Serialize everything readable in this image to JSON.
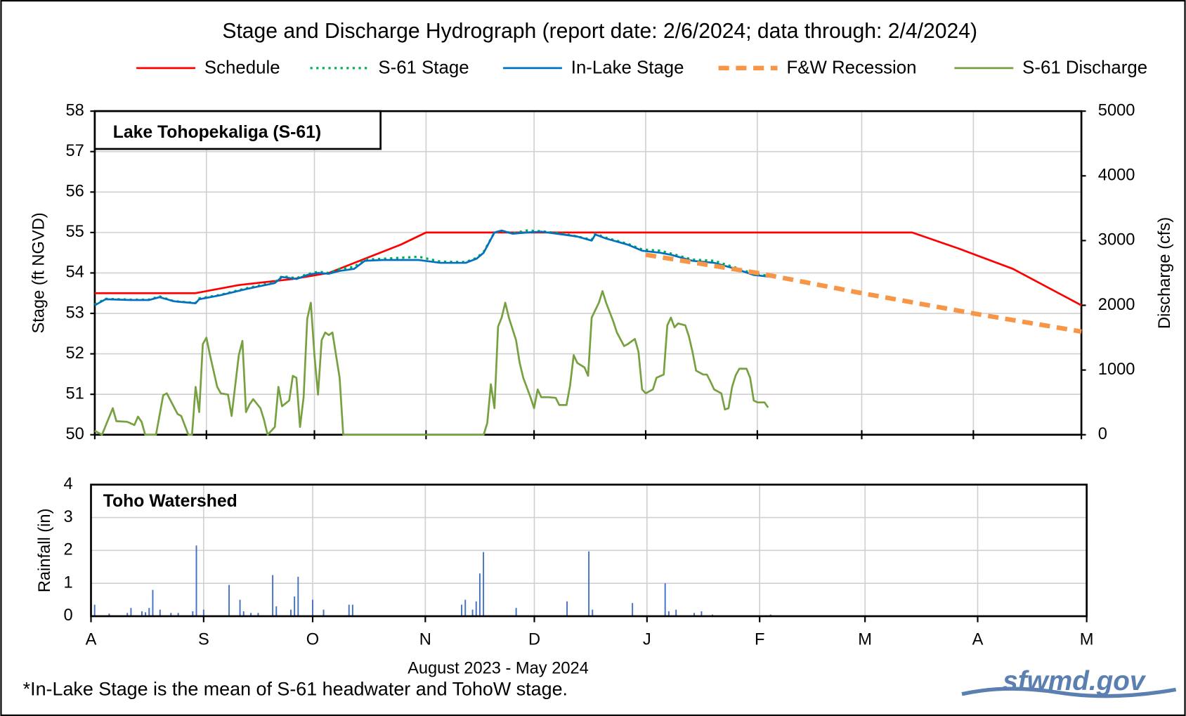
{
  "title": "Stage and Discharge Hydrograph (report date: 2/6/2024; data through: 2/4/2024)",
  "footnote": "*In-Lake Stage is the mean of S-61 headwater and TohoW stage.",
  "logo": "sfwmd.gov",
  "chart_data": [
    {
      "type": "line",
      "panel_label": "Lake Tohopekaliga (S-61)",
      "ylabel": "Stage (ft NGVD)",
      "y2label": "Discharge (cfs)",
      "xlim": [
        0,
        274
      ],
      "xticks": [
        0,
        31,
        61,
        92,
        122,
        153,
        184,
        213,
        244,
        274
      ],
      "ylim": [
        50,
        58
      ],
      "yticks": [
        50,
        51,
        52,
        53,
        54,
        55,
        56,
        57,
        58
      ],
      "y2lim": [
        0,
        5000
      ],
      "y2ticks": [
        0,
        1000,
        2000,
        3000,
        4000,
        5000
      ],
      "grid": true,
      "series": [
        {
          "name": "Schedule",
          "color": "#ff0000",
          "style": "solid",
          "x": [
            0,
            28,
            40,
            55,
            65,
            75,
            85,
            92,
            227,
            240,
            255,
            274
          ],
          "values": [
            53.5,
            53.5,
            53.7,
            53.85,
            54.0,
            54.35,
            54.7,
            55.0,
            55.0,
            54.6,
            54.1,
            53.2
          ]
        },
        {
          "name": "S-61 Stage",
          "color": "#00b050",
          "style": "dotted",
          "x": [
            0,
            3,
            10,
            15,
            18,
            22,
            28,
            29,
            35,
            42,
            50,
            52,
            56,
            59,
            62,
            65,
            68,
            72,
            75,
            80,
            90,
            96,
            103,
            106,
            108,
            111,
            113,
            116,
            120,
            124,
            130,
            134,
            138,
            139,
            142,
            148,
            152,
            157,
            160,
            166,
            172,
            178,
            183,
            188
          ],
          "values": [
            53.22,
            53.36,
            53.34,
            53.34,
            53.42,
            53.3,
            53.26,
            53.37,
            53.46,
            53.62,
            53.77,
            53.92,
            53.87,
            53.97,
            54.03,
            54.0,
            54.1,
            54.15,
            54.33,
            54.35,
            54.4,
            54.28,
            54.27,
            54.37,
            54.52,
            55.0,
            55.04,
            54.98,
            55.05,
            55.03,
            54.97,
            54.9,
            54.82,
            54.97,
            54.87,
            54.72,
            54.58,
            54.55,
            54.48,
            54.33,
            54.3,
            54.13,
            53.98,
            53.92
          ]
        },
        {
          "name": "In-Lake Stage",
          "color": "#0070c0",
          "style": "solid",
          "x": [
            0,
            3,
            10,
            15,
            18,
            22,
            28,
            29,
            35,
            42,
            50,
            52,
            56,
            59,
            62,
            65,
            68,
            72,
            75,
            80,
            90,
            96,
            103,
            106,
            108,
            111,
            113,
            116,
            120,
            124,
            130,
            134,
            138,
            139,
            142,
            148,
            152,
            157,
            160,
            166,
            172,
            178,
            183,
            188
          ],
          "values": [
            53.2,
            53.35,
            53.33,
            53.33,
            53.4,
            53.3,
            53.25,
            53.35,
            53.45,
            53.6,
            53.75,
            53.9,
            53.85,
            53.95,
            54.0,
            53.98,
            54.05,
            54.1,
            54.3,
            54.32,
            54.32,
            54.25,
            54.25,
            54.35,
            54.5,
            55.0,
            55.05,
            54.97,
            55.0,
            55.02,
            54.95,
            54.9,
            54.8,
            54.95,
            54.85,
            54.7,
            54.55,
            54.5,
            54.45,
            54.3,
            54.25,
            54.1,
            53.95,
            53.9
          ]
        },
        {
          "name": "F&W Recession",
          "color": "#f79646",
          "style": "dashed",
          "x": [
            153,
            184,
            213,
            244,
            274
          ],
          "values": [
            54.45,
            54.0,
            53.5,
            53.0,
            52.55
          ]
        },
        {
          "name": "S-61 Discharge",
          "color": "#77a040",
          "style": "solid",
          "axis": "y2",
          "x": [
            0,
            2,
            5,
            6,
            9,
            11,
            12,
            13,
            14,
            17,
            19,
            20,
            23,
            24,
            26,
            27,
            28,
            29,
            30,
            31,
            32,
            34,
            35,
            37,
            38,
            40,
            41,
            42,
            43,
            44,
            46,
            47,
            48,
            50,
            51,
            52,
            54,
            55,
            56,
            57,
            58,
            59,
            60,
            61,
            62,
            63,
            64,
            65,
            66,
            68,
            69,
            108,
            109,
            110,
            111,
            112,
            113,
            114,
            115,
            117,
            118,
            119,
            121,
            122,
            123,
            124,
            126,
            128,
            129,
            131,
            132,
            133,
            134,
            136,
            137,
            138,
            140,
            141,
            142,
            144,
            145,
            147,
            148,
            150,
            151,
            152,
            153,
            155,
            156,
            158,
            159,
            160,
            161,
            162,
            164,
            165,
            166,
            167,
            169,
            170,
            171,
            172,
            174,
            175,
            176,
            177,
            178,
            179,
            181,
            182,
            183,
            184,
            186,
            187
          ],
          "values": [
            60,
            0,
            410,
            210,
            200,
            150,
            280,
            200,
            0,
            0,
            610,
            640,
            320,
            290,
            0,
            0,
            740,
            350,
            1400,
            1500,
            1230,
            740,
            640,
            620,
            290,
            1230,
            1450,
            350,
            470,
            550,
            410,
            230,
            0,
            120,
            740,
            440,
            530,
            910,
            880,
            120,
            580,
            1790,
            2040,
            1230,
            620,
            1460,
            1580,
            1540,
            1580,
            880,
            0,
            0,
            180,
            780,
            410,
            1670,
            1810,
            2040,
            1810,
            1460,
            1110,
            880,
            580,
            410,
            700,
            580,
            580,
            570,
            460,
            460,
            760,
            1230,
            1110,
            1040,
            910,
            1810,
            2040,
            2220,
            2040,
            1750,
            1580,
            1370,
            1400,
            1480,
            1280,
            700,
            640,
            700,
            880,
            930,
            1690,
            1810,
            1660,
            1720,
            1690,
            1520,
            1280,
            990,
            930,
            930,
            820,
            700,
            640,
            390,
            410,
            740,
            920,
            1020,
            1020,
            880,
            530,
            500,
            500,
            420
          ]
        }
      ]
    },
    {
      "type": "bar",
      "panel_label": "Toho Watershed",
      "ylabel": "Rainfall (in)",
      "xlabel": "August 2023 - May 2024",
      "color": "#4472c4",
      "xlim": [
        0,
        274
      ],
      "xticks": [
        {
          "value": 0,
          "label": "A"
        },
        {
          "value": 31,
          "label": "S"
        },
        {
          "value": 61,
          "label": "O"
        },
        {
          "value": 92,
          "label": "N"
        },
        {
          "value": 122,
          "label": "D"
        },
        {
          "value": 153,
          "label": "J"
        },
        {
          "value": 184,
          "label": "F"
        },
        {
          "value": 213,
          "label": "M"
        },
        {
          "value": 244,
          "label": "A"
        },
        {
          "value": 274,
          "label": "M"
        }
      ],
      "ylim": [
        0,
        4
      ],
      "yticks": [
        0,
        1,
        2,
        3,
        4
      ],
      "grid": true,
      "x": [
        1,
        5,
        10,
        11,
        14,
        15,
        16,
        17,
        19,
        22,
        24,
        28,
        29,
        31,
        38,
        41,
        42,
        44,
        46,
        50,
        51,
        55,
        56,
        57,
        61,
        64,
        71,
        72,
        102,
        103,
        105,
        106,
        107,
        108,
        117,
        131,
        137,
        138,
        149,
        158,
        159,
        161,
        166,
        168,
        171,
        187
      ],
      "values": [
        0.35,
        0.08,
        0.1,
        0.25,
        0.15,
        0.12,
        0.25,
        0.8,
        0.2,
        0.1,
        0.1,
        0.15,
        2.15,
        0.2,
        0.95,
        0.5,
        0.15,
        0.1,
        0.1,
        1.25,
        0.3,
        0.2,
        0.6,
        1.2,
        0.5,
        0.2,
        0.35,
        0.35,
        0.35,
        0.5,
        0.2,
        0.45,
        1.3,
        1.95,
        0.25,
        0.45,
        1.97,
        0.2,
        0.4,
        1.0,
        0.15,
        0.2,
        0.1,
        0.15,
        0.05,
        0.05
      ]
    }
  ]
}
